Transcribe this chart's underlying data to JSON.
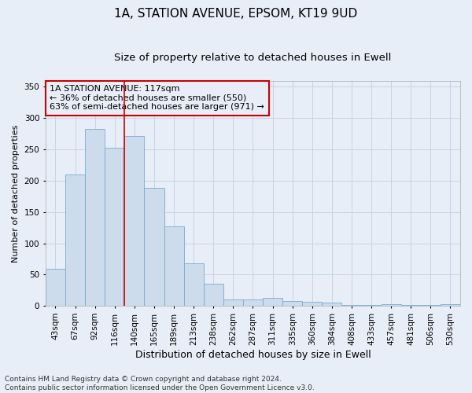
{
  "title": "1A, STATION AVENUE, EPSOM, KT19 9UD",
  "subtitle": "Size of property relative to detached houses in Ewell",
  "xlabel": "Distribution of detached houses by size in Ewell",
  "ylabel": "Number of detached properties",
  "categories": [
    "43sqm",
    "67sqm",
    "92sqm",
    "116sqm",
    "140sqm",
    "165sqm",
    "189sqm",
    "213sqm",
    "238sqm",
    "262sqm",
    "287sqm",
    "311sqm",
    "335sqm",
    "360sqm",
    "384sqm",
    "408sqm",
    "433sqm",
    "457sqm",
    "481sqm",
    "506sqm",
    "530sqm"
  ],
  "values": [
    59,
    210,
    283,
    253,
    271,
    188,
    127,
    68,
    35,
    10,
    10,
    13,
    8,
    7,
    5,
    1,
    1,
    3,
    1,
    2,
    3
  ],
  "bar_color": "#ccdcec",
  "bar_edge_color": "#7aaace",
  "grid_color": "#c8d4e4",
  "background_color": "#e8eef8",
  "vline_color": "#cc0000",
  "vline_pos": 3.5,
  "annotation_text": "1A STATION AVENUE: 117sqm\n← 36% of detached houses are smaller (550)\n63% of semi-detached houses are larger (971) →",
  "annotation_box_color": "#cc0000",
  "footer_line1": "Contains HM Land Registry data © Crown copyright and database right 2024.",
  "footer_line2": "Contains public sector information licensed under the Open Government Licence v3.0.",
  "ylim": [
    0,
    360
  ],
  "yticks": [
    0,
    50,
    100,
    150,
    200,
    250,
    300,
    350
  ],
  "title_fontsize": 11,
  "subtitle_fontsize": 9.5,
  "xlabel_fontsize": 9,
  "ylabel_fontsize": 8,
  "tick_fontsize": 7.5,
  "annotation_fontsize": 8,
  "footer_fontsize": 6.5
}
